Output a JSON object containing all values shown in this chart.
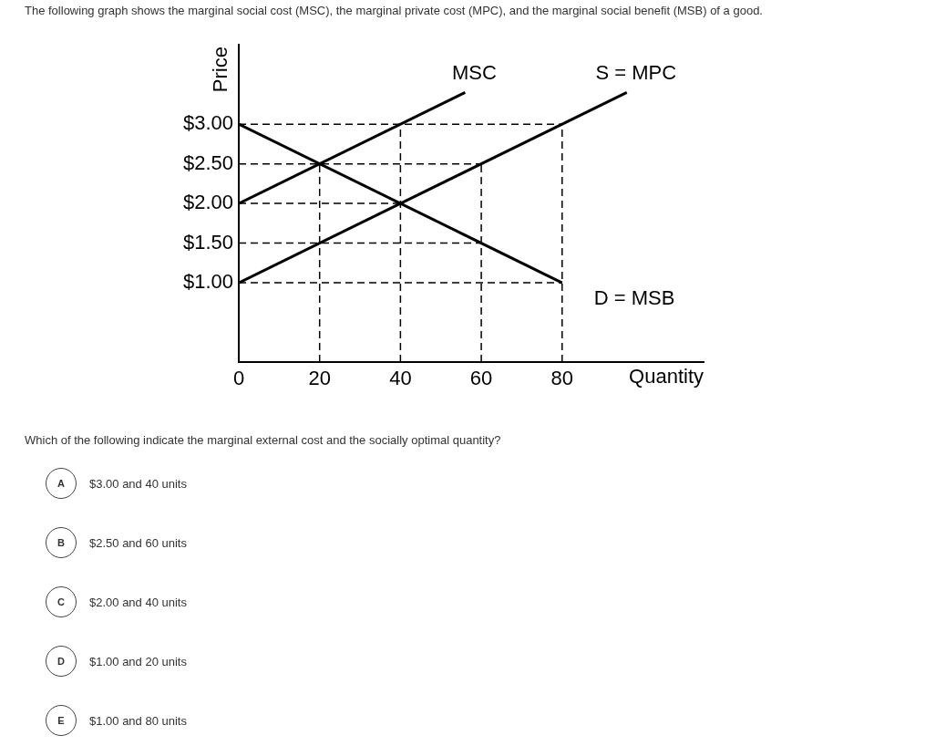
{
  "chart_data": {
    "type": "line",
    "title": "The following graph shows the marginal social cost (MSC), the marginal private cost (MPC), and the marginal social benefit (MSB) of a good.",
    "xlabel": "Quantity",
    "ylabel": "Price",
    "xlim": [
      0,
      115
    ],
    "xticks": [
      0,
      20,
      40,
      60,
      80
    ],
    "ylim": [
      0,
      4
    ],
    "yticks": [
      {
        "value": 1,
        "label": "$1.00"
      },
      {
        "value": 1.5,
        "label": "$1.50"
      },
      {
        "value": 2,
        "label": "$2.00"
      },
      {
        "value": 2.5,
        "label": "$2.50"
      },
      {
        "value": 3,
        "label": "$3.00"
      }
    ],
    "grid": false,
    "legend": false,
    "marker": "none",
    "series": [
      {
        "name": "MSC",
        "color": "#000000",
        "x": [
          0,
          56
        ],
        "values": [
          2,
          3.4
        ]
      },
      {
        "name": "S = MPC",
        "color": "#000000",
        "x": [
          0,
          96
        ],
        "values": [
          1,
          3.4
        ]
      },
      {
        "name": "D = MSB",
        "color": "#000000",
        "x": [
          0,
          80
        ],
        "values": [
          3,
          1
        ]
      },
      {
        "color": "#000000",
        "line_style": "dashed",
        "x": [
          0,
          80
        ],
        "values": [
          3,
          3
        ]
      },
      {
        "color": "#000000",
        "line_style": "dashed",
        "x": [
          0,
          60
        ],
        "values": [
          2.5,
          2.5
        ]
      },
      {
        "color": "#000000",
        "line_style": "dashed",
        "x": [
          0,
          40
        ],
        "values": [
          2,
          2
        ]
      },
      {
        "color": "#000000",
        "line_style": "dashed",
        "x": [
          0,
          60
        ],
        "values": [
          1.5,
          1.5
        ]
      },
      {
        "color": "#000000",
        "line_style": "dashed",
        "x": [
          0,
          80
        ],
        "values": [
          1,
          1
        ]
      },
      {
        "color": "#000000",
        "line_style": "dashed",
        "x": [
          20,
          20
        ],
        "values": [
          0,
          2.5
        ]
      },
      {
        "color": "#000000",
        "line_style": "dashed",
        "x": [
          40,
          40
        ],
        "values": [
          0,
          3
        ]
      },
      {
        "color": "#000000",
        "line_style": "dashed",
        "x": [
          60,
          60
        ],
        "values": [
          0,
          2.5
        ]
      },
      {
        "color": "#000000",
        "line_style": "dashed",
        "x": [
          80,
          80
        ],
        "values": [
          0,
          3
        ]
      }
    ],
    "annotations": [
      "Which of the following indicate the marginal external cost and the socially optimal quantity?",
      "A",
      "$3.00 and 40 units",
      "B",
      "$2.50 and 60 units",
      "C",
      "$2.00 and 40 units",
      "D",
      "$1.00 and 20 units",
      "E",
      "$1.00 and 80 units"
    ]
  }
}
